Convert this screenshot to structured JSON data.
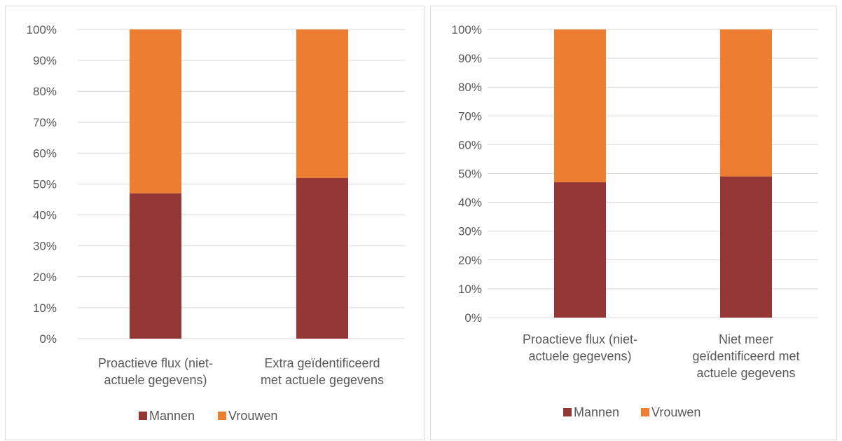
{
  "chart_data": [
    {
      "type": "bar",
      "stacked": true,
      "percent_stacked": true,
      "categories": [
        [
          "Proactieve flux (niet-",
          "actuele gegevens)"
        ],
        [
          "Extra geïdentificeerd",
          "met actuele gegevens"
        ]
      ],
      "series": [
        {
          "name": "Mannen",
          "values": [
            47,
            52
          ],
          "color": "#943634"
        },
        {
          "name": "Vrouwen",
          "values": [
            53,
            48
          ],
          "color": "#ed7d31"
        }
      ],
      "y_ticks": [
        "0%",
        "10%",
        "20%",
        "30%",
        "40%",
        "50%",
        "60%",
        "70%",
        "80%",
        "90%",
        "100%"
      ],
      "ylim": [
        0,
        100
      ],
      "grid": true,
      "legend": "bottom"
    },
    {
      "type": "bar",
      "stacked": true,
      "percent_stacked": true,
      "categories": [
        [
          "Proactieve flux (niet-",
          "actuele gegevens)"
        ],
        [
          "Niet meer",
          "geïdentificeerd met",
          "actuele gegevens"
        ]
      ],
      "series": [
        {
          "name": "Mannen",
          "values": [
            47,
            49
          ],
          "color": "#943634"
        },
        {
          "name": "Vrouwen",
          "values": [
            53,
            51
          ],
          "color": "#ed7d31"
        }
      ],
      "y_ticks": [
        "0%",
        "10%",
        "20%",
        "30%",
        "40%",
        "50%",
        "60%",
        "70%",
        "80%",
        "90%",
        "100%"
      ],
      "ylim": [
        0,
        100
      ],
      "grid": true,
      "legend": "bottom"
    }
  ]
}
